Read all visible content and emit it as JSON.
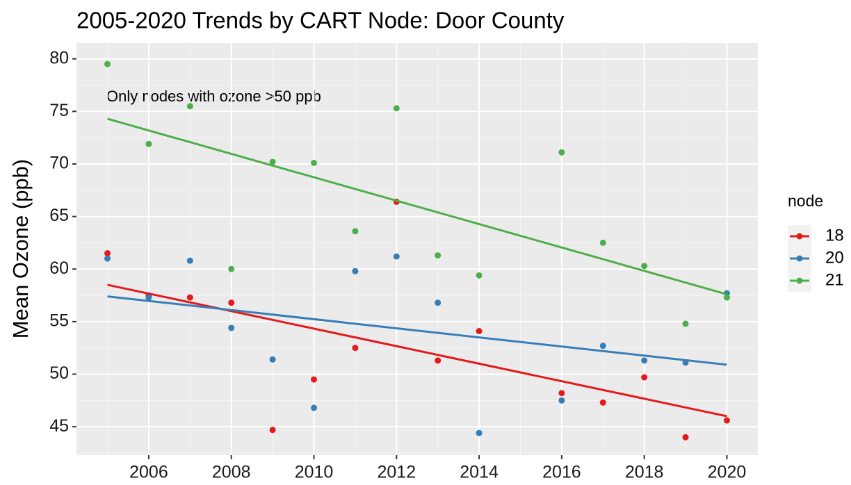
{
  "chart_data": {
    "type": "scatter",
    "title": "2005-2020 Trends by CART Node: Door County",
    "y_label": "Mean Ozone (ppb)",
    "annotation": "Only nodes with ozone >50 ppb",
    "legend_title": "node",
    "x": [
      2005,
      2006,
      2007,
      2008,
      2009,
      2010,
      2011,
      2012,
      2013,
      2014,
      2016,
      2017,
      2018,
      2019,
      2020
    ],
    "series": [
      {
        "name": "18",
        "color": "#e41a1c",
        "values": [
          61.5,
          57.5,
          57.3,
          56.8,
          44.7,
          49.5,
          52.5,
          66.4,
          51.3,
          54.1,
          48.2,
          47.3,
          49.7,
          44.0,
          45.6
        ],
        "trend": {
          "x": [
            2005,
            2020
          ],
          "values": [
            58.5,
            46.0
          ]
        }
      },
      {
        "name": "20",
        "color": "#377eb8",
        "values": [
          61.0,
          57.3,
          60.8,
          54.4,
          51.4,
          46.8,
          59.8,
          61.2,
          56.8,
          44.4,
          47.5,
          52.7,
          51.3,
          51.1,
          57.7
        ],
        "trend": {
          "x": [
            2005,
            2020
          ],
          "values": [
            57.4,
            50.9
          ]
        }
      },
      {
        "name": "21",
        "color": "#4daf4a",
        "values": [
          79.5,
          71.9,
          75.5,
          60.0,
          70.2,
          70.1,
          63.6,
          75.3,
          61.3,
          59.4,
          71.1,
          62.5,
          60.3,
          54.8,
          57.3
        ],
        "trend": {
          "x": [
            2005,
            2020
          ],
          "values": [
            74.3,
            57.6
          ]
        }
      }
    ],
    "xlim": [
      2004.25,
      2020.75
    ],
    "xticks": [
      2006,
      2008,
      2010,
      2012,
      2014,
      2016,
      2018,
      2020
    ],
    "ylim": [
      42.3,
      81.5
    ],
    "yticks": [
      45,
      50,
      55,
      60,
      65,
      70,
      75,
      80
    ],
    "grid": true
  }
}
